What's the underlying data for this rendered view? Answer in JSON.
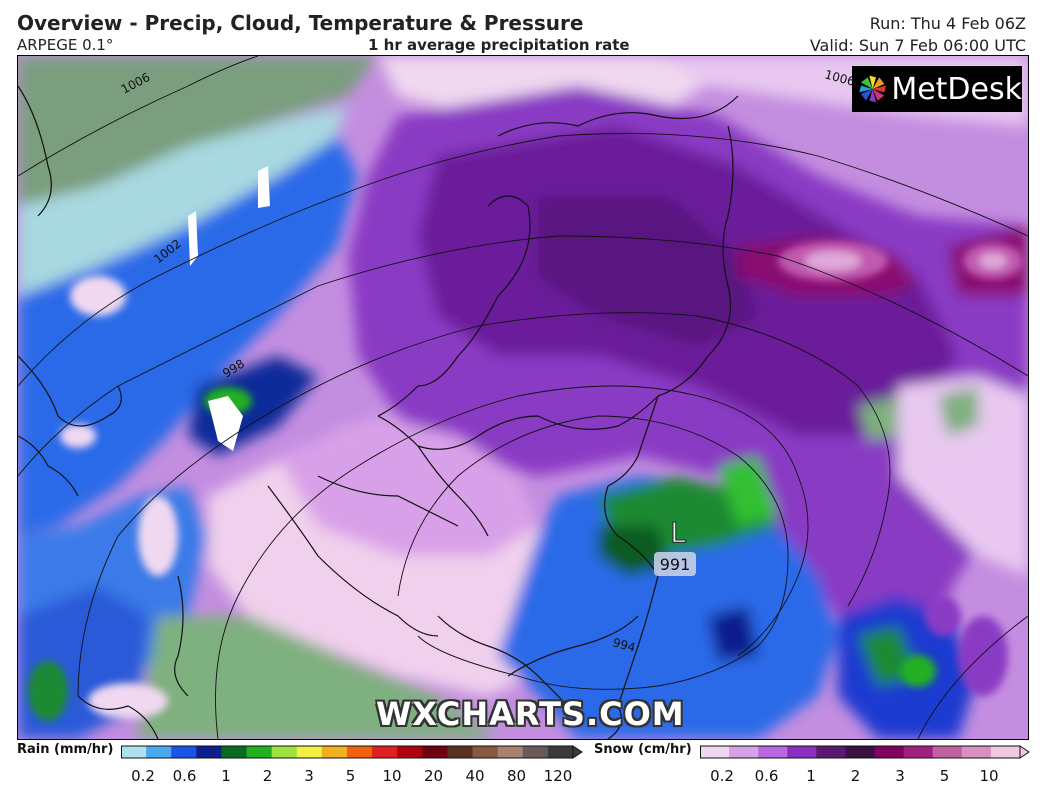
{
  "header": {
    "title": "Overview - Precip, Cloud, Temperature & Pressure",
    "model": "ARPEGE 0.1°",
    "subtitle": "1 hr average precipitation rate",
    "run": "Run: Thu 4 Feb 06Z",
    "valid": "Valid: Sun 7 Feb 06:00 UTC"
  },
  "logo": {
    "text": "MetDesk"
  },
  "watermark": "WXCHARTS.COM",
  "map": {
    "low_pressure": {
      "symbol": "L",
      "value": "991"
    },
    "isobar_labels": [
      "1006",
      "1002",
      "998",
      "994",
      "1006"
    ]
  },
  "rain_legend": {
    "label": "Rain (mm/hr)",
    "ticks": [
      "0.2",
      "0.6",
      "1",
      "2",
      "3",
      "5",
      "10",
      "20",
      "40",
      "80",
      "120"
    ],
    "colors": [
      "#aee0ee",
      "#4aa8f0",
      "#1a55e8",
      "#0c1f8c",
      "#0a6a20",
      "#20b020",
      "#9ee040",
      "#f0f040",
      "#f0b020",
      "#f06010",
      "#e02020",
      "#b00010",
      "#700010",
      "#5a3020",
      "#8a5a40",
      "#a88070",
      "#6a5a5a",
      "#3a3a3a"
    ]
  },
  "snow_legend": {
    "label": "Snow (cm/hr)",
    "ticks": [
      "0.2",
      "0.6",
      "1",
      "2",
      "3",
      "5",
      "10"
    ],
    "colors": [
      "#f0d8f0",
      "#d8a0e8",
      "#b868e0",
      "#8a30c0",
      "#5a1870",
      "#3a1040",
      "#800060",
      "#a02080",
      "#c060a0",
      "#d890c0",
      "#f0c8e0"
    ]
  }
}
